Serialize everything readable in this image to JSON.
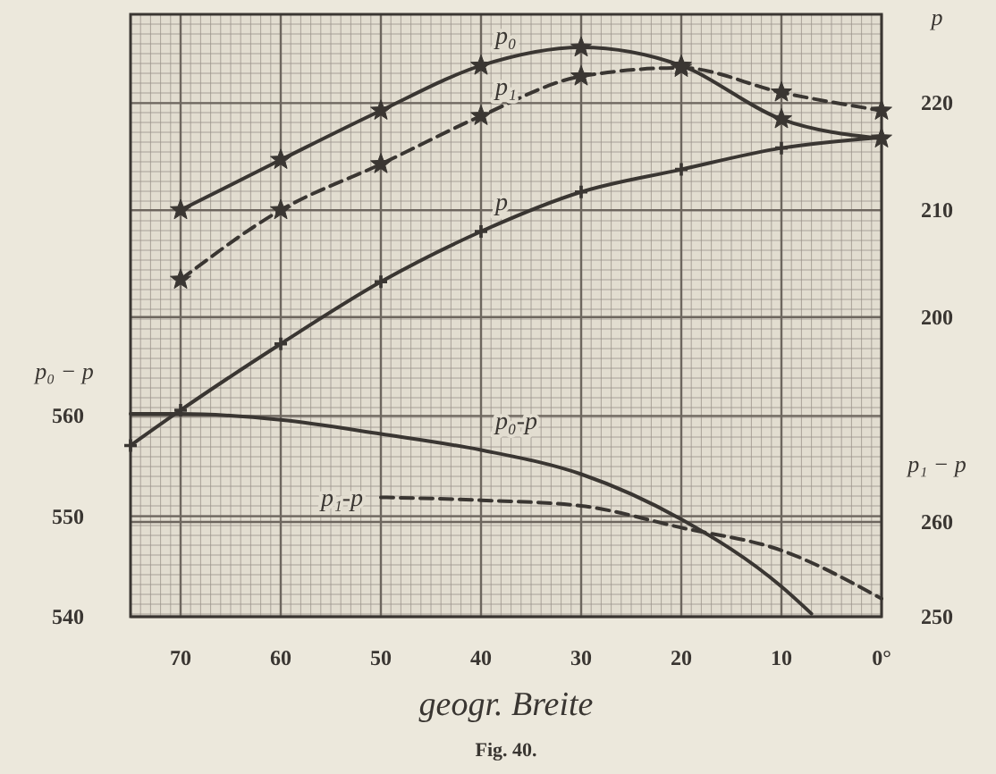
{
  "chart_data": {
    "type": "line",
    "xlabel": "geogr. Breite",
    "ylabel": "p₀ − p",
    "y2label": "p",
    "y3label": "p₁ − p",
    "annotations": [
      "Fig. 40."
    ],
    "xlim": [
      75,
      0
    ],
    "xticks": [
      70,
      60,
      50,
      40,
      30,
      20,
      10,
      {
        "value": 0,
        "label": "0°"
      }
    ],
    "ylim": [
      540,
      600
    ],
    "yticks": [
      540,
      550,
      560
    ],
    "y2lim": [
      172,
      228.3
    ],
    "y2ticks": [
      200,
      210,
      220
    ],
    "y3lim": [
      250,
      313.6
    ],
    "y3ticks": [
      250,
      260
    ],
    "grid": true,
    "series": [
      {
        "name": "p₀",
        "color": "#3a3632",
        "axis": "y2",
        "marker": "star",
        "line_style": "solid",
        "x": [
          70,
          60,
          50,
          40,
          30,
          20,
          10,
          0
        ],
        "values": [
          210.0,
          214.7,
          219.3,
          223.5,
          225.2,
          223.5,
          218.5,
          216.7
        ]
      },
      {
        "name": "p₁",
        "color": "#3a3632",
        "axis": "y2",
        "marker": "star",
        "line_style": "dashed",
        "x": [
          70,
          60,
          50,
          40,
          30,
          20,
          10,
          0
        ],
        "values": [
          203.5,
          210.0,
          214.3,
          218.8,
          222.5,
          223.3,
          221.0,
          219.3
        ]
      },
      {
        "name": "p",
        "color": "#3a3632",
        "axis": "y2",
        "marker": "cross",
        "line_style": "solid",
        "x": [
          75,
          70,
          60,
          50,
          40,
          30,
          20,
          10,
          0
        ],
        "values": [
          188.0,
          191.3,
          197.5,
          203.3,
          208.0,
          211.7,
          213.8,
          215.8,
          216.8
        ]
      },
      {
        "name": "p₀-p",
        "color": "#3a3632",
        "axis": "y",
        "marker": "none",
        "line_style": "solid",
        "x": [
          75,
          70,
          60,
          50,
          40,
          30,
          20,
          10,
          7
        ],
        "values": [
          560.2,
          560.2,
          559.6,
          558.2,
          556.6,
          554.2,
          549.7,
          543.0,
          540.3
        ]
      },
      {
        "name": "p₁-p",
        "color": "#3a3632",
        "axis": "y3",
        "marker": "none",
        "line_style": "dashed",
        "x": [
          50,
          40,
          30,
          20,
          10,
          0
        ],
        "values": [
          262.6,
          262.3,
          261.7,
          259.4,
          257.0,
          251.9
        ]
      }
    ]
  }
}
